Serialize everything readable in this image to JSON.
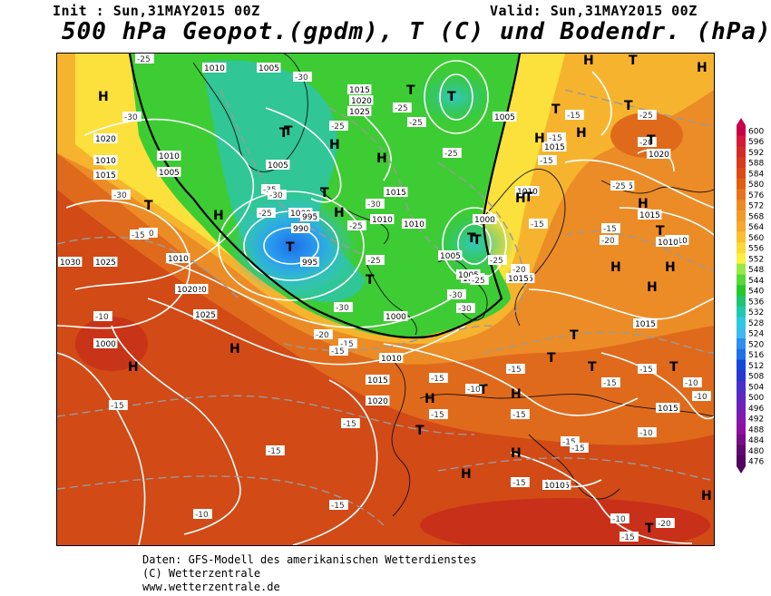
{
  "header": {
    "init": "Init : Sun,31MAY2015 00Z",
    "valid": "Valid: Sun,31MAY2015 00Z",
    "title": "500 hPa Geopot.(gpdm), T (C) und Bodendr. (hPa)"
  },
  "footer": {
    "line1": "Daten: GFS-Modell des amerikanischen Wetterdienstes",
    "line2": "(C) Wetterzentrale",
    "line3": "www.wetterzentrale.de"
  },
  "legend": {
    "values": [
      "600",
      "596",
      "592",
      "588",
      "584",
      "580",
      "576",
      "572",
      "568",
      "564",
      "560",
      "556",
      "552",
      "548",
      "544",
      "540",
      "536",
      "532",
      "528",
      "524",
      "520",
      "516",
      "512",
      "508",
      "504",
      "500",
      "496",
      "492",
      "488",
      "484",
      "480",
      "476"
    ],
    "colors": [
      "#c8004a",
      "#d81838",
      "#d42a28",
      "#d83a1c",
      "#dc4a14",
      "#e05e10",
      "#e6741c",
      "#ec8a26",
      "#f09a2c",
      "#f4aa2c",
      "#f8c030",
      "#fcd838",
      "#fcf040",
      "#98e848",
      "#58d838",
      "#28c828",
      "#20c470",
      "#20c8b0",
      "#30c8e0",
      "#40b8f0",
      "#2c90ec",
      "#2070e8",
      "#1448d8",
      "#2838d0",
      "#4830c8",
      "#5c28c0",
      "#7020b8",
      "#8418ac",
      "#9010a0",
      "#780c88",
      "#600870",
      "#500460"
    ]
  },
  "pressure_labels": [
    "1010",
    "1005",
    "1015",
    "1020",
    "1025",
    "1020",
    "1010",
    "1005",
    "1010",
    "1015",
    "1025",
    "1020",
    "1015",
    "1010",
    "1005",
    "1000",
    "995",
    "990",
    "1000",
    "995",
    "1005",
    "1010",
    "1015",
    "1010",
    "1000",
    "1005",
    "1015",
    "1010",
    "1020",
    "1025",
    "1030",
    "1000",
    "1010",
    "1015",
    "1020",
    "1025",
    "1015",
    "1010",
    "1015",
    "1015",
    "1010",
    "1020",
    "1005",
    "1010",
    "1015",
    "1015",
    "1010"
  ],
  "temperature_labels": [
    "-25",
    "-30",
    "-30",
    "-30",
    "-25",
    "-25",
    "-25",
    "-25",
    "-25",
    "-25",
    "-25",
    "-30",
    "-30",
    "-35",
    "-30",
    "-25",
    "-25",
    "-20",
    "-15",
    "-15",
    "-15",
    "-15",
    "-15",
    "-20",
    "-20",
    "-25",
    "-25",
    "-30",
    "-30",
    "-20",
    "-15",
    "-15",
    "-10",
    "-10",
    "-15",
    "-15",
    "-10",
    "-15",
    "-15",
    "-15",
    "-15",
    "-15",
    "-15",
    "-15",
    "-15",
    "-15",
    "-10",
    "-10",
    "-10",
    "-20",
    "-15",
    "-15",
    "-10",
    "-15",
    "-10",
    "-15"
  ],
  "high_labels": [
    "H",
    "H",
    "H",
    "H",
    "H",
    "H",
    "H",
    "H",
    "H",
    "H",
    "H",
    "H",
    "H",
    "H",
    "H",
    "H",
    "H",
    "H",
    "H",
    "H",
    "H"
  ],
  "low_labels": [
    "T",
    "T",
    "T",
    "T",
    "T",
    "T",
    "T",
    "T",
    "T",
    "T",
    "T",
    "T",
    "T",
    "T",
    "T",
    "T",
    "T",
    "T",
    "T",
    "T",
    "T",
    "T",
    "T"
  ]
}
